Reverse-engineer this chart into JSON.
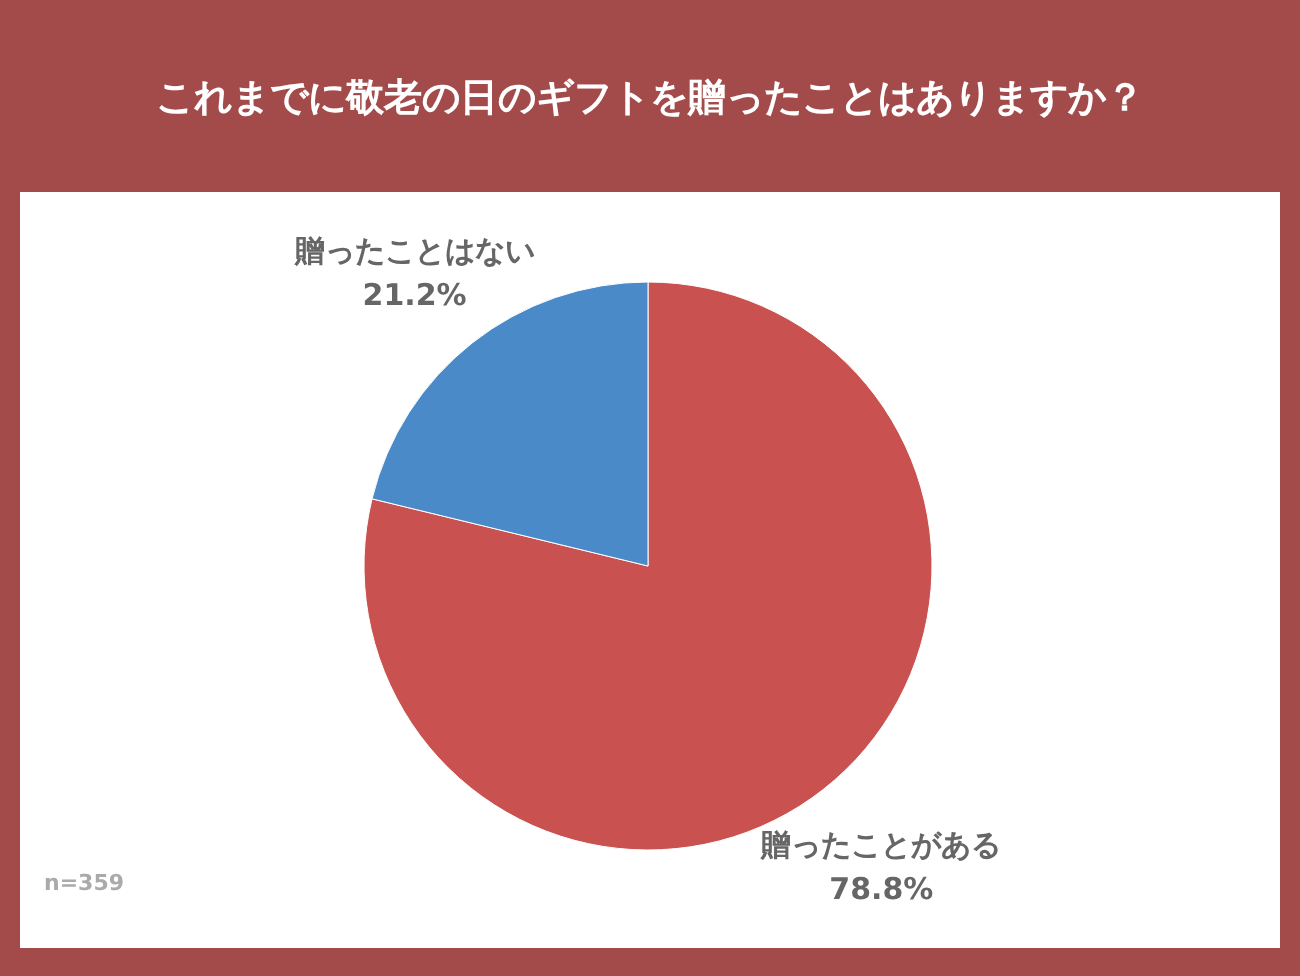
{
  "chart_data": {
    "type": "pie",
    "title": "これまでに敬老の日のギフトを贈ったことはありますか？",
    "categories": [
      "贈ったことがある",
      "贈ったことはない"
    ],
    "values": [
      78.8,
      21.2
    ],
    "colors": [
      "#c95250",
      "#4b8ac8"
    ],
    "value_labels": [
      "78.8%",
      "21.2%"
    ],
    "annotations": [
      "n=359"
    ]
  }
}
